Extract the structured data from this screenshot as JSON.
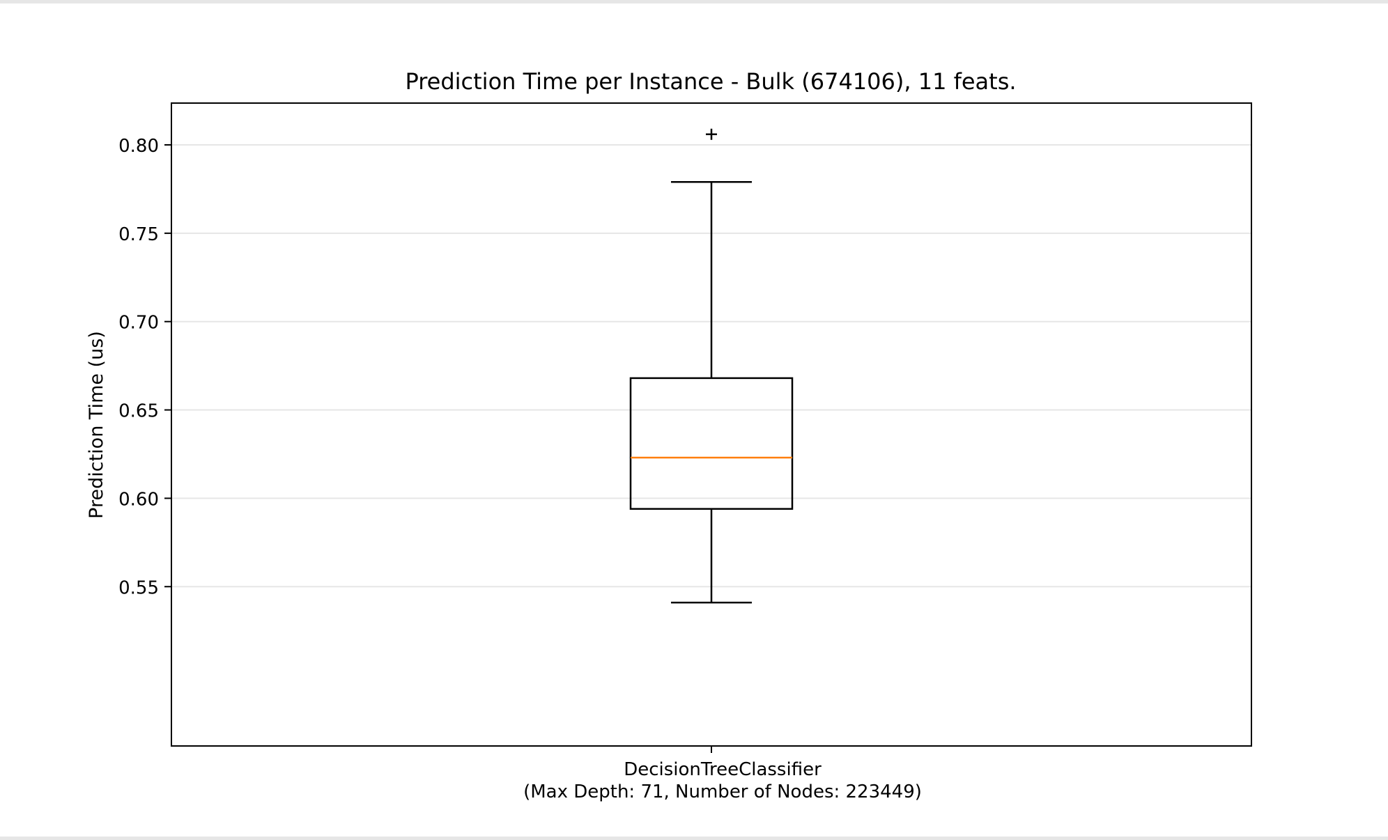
{
  "chart_data": {
    "type": "boxplot",
    "title": "Prediction Time per Instance - Bulk (674106), 11 feats.",
    "xlabel": "",
    "ylabel": "Prediction Time (us)",
    "ylim": [
      0.528,
      0.819
    ],
    "yticks": [
      0.55,
      0.6,
      0.65,
      0.7,
      0.75,
      0.8
    ],
    "ytick_labels": [
      "0.55",
      "0.60",
      "0.65",
      "0.70",
      "0.75",
      "0.80"
    ],
    "grid": "horizontal",
    "categories": [
      {
        "line1": "DecisionTreeClassifier",
        "line2": "(Max Depth: 71, Number of Nodes: 223449)"
      }
    ],
    "boxes": [
      {
        "whisker_low": 0.541,
        "q1": 0.594,
        "median": 0.623,
        "q3": 0.668,
        "whisker_high": 0.779,
        "outliers": [
          0.806
        ]
      }
    ],
    "colors": {
      "median": "#ff7f0e",
      "box": "#000000",
      "grid": "#e6e6e6"
    }
  }
}
